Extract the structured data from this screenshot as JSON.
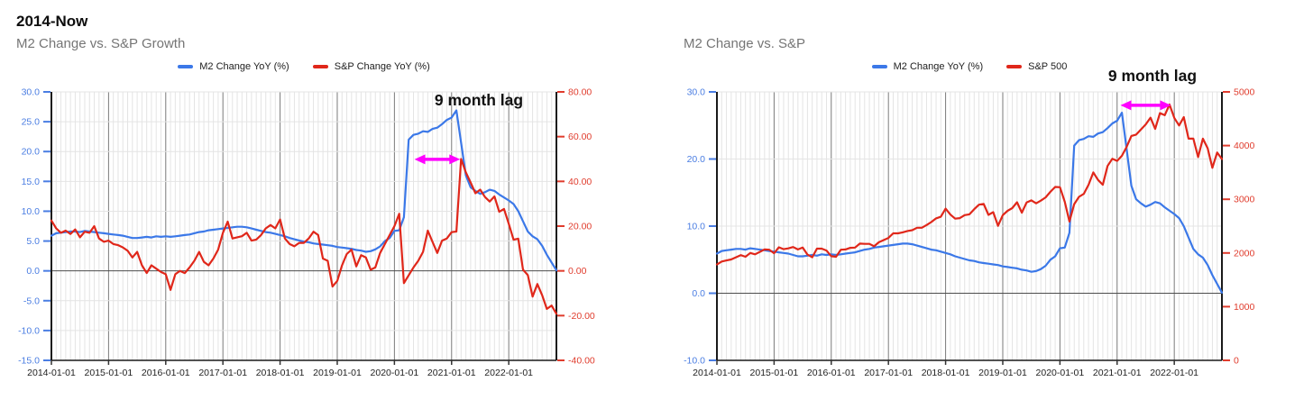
{
  "page": {
    "background": "#ffffff",
    "heading": "2014-Now"
  },
  "colors": {
    "m2_blue": "#3b78e8",
    "sp_red": "#e0271a",
    "blue_axis_label": "#4a7de2",
    "red_axis_label": "#e03c2d",
    "arrow_magenta": "#ff00ff",
    "title_gray": "#757575"
  },
  "chart_data": [
    {
      "type": "line",
      "title": "M2 Change vs. S&P Growth",
      "x_unit": "month",
      "x_start": "2014-01",
      "x_tick_labels": [
        "2014-01-01",
        "2015-01-01",
        "2016-01-01",
        "2017-01-01",
        "2018-01-01",
        "2019-01-01",
        "2020-01-01",
        "2021-01-01",
        "2022-01-01"
      ],
      "left_axis": {
        "min": -15,
        "max": 30,
        "tick_labels": [
          "30.0",
          "25.0",
          "20.0",
          "15.0",
          "10.0",
          "5.0",
          "0.0",
          "-5.0",
          "-10.0",
          "-15.0"
        ],
        "color": "#4a7de2"
      },
      "right_axis": {
        "min": -40,
        "max": 80,
        "tick_labels": [
          "80.00",
          "60.00",
          "40.00",
          "20.00",
          "0.00",
          "-20.00",
          "-40.00"
        ],
        "color": "#e03c2d"
      },
      "grid": {
        "minor_vertical": "monthly",
        "major_vertical": "yearly",
        "horizontal": "left-ticks"
      },
      "series": [
        {
          "name": "M2 Change YoY (%)",
          "color": "#3b78e8",
          "axis": "left",
          "values": [
            5.9,
            6.3,
            6.4,
            6.5,
            6.6,
            6.6,
            6.5,
            6.7,
            6.6,
            6.5,
            6.4,
            6.3,
            6.2,
            6.1,
            6.0,
            5.9,
            5.7,
            5.5,
            5.5,
            5.6,
            5.7,
            5.6,
            5.8,
            5.7,
            5.8,
            5.7,
            5.8,
            5.9,
            6.0,
            6.1,
            6.3,
            6.5,
            6.6,
            6.8,
            6.9,
            7.0,
            7.1,
            7.2,
            7.3,
            7.4,
            7.4,
            7.3,
            7.1,
            6.9,
            6.7,
            6.5,
            6.4,
            6.2,
            6.0,
            5.8,
            5.5,
            5.3,
            5.1,
            4.9,
            4.8,
            4.6,
            4.5,
            4.4,
            4.3,
            4.2,
            4.0,
            3.9,
            3.8,
            3.7,
            3.5,
            3.4,
            3.2,
            3.3,
            3.6,
            4.1,
            5.0,
            5.5,
            6.7,
            6.8,
            9.0,
            22.0,
            22.8,
            23.0,
            23.4,
            23.3,
            23.8,
            24.0,
            24.6,
            25.3,
            25.7,
            26.9,
            21.5,
            16.0,
            14.0,
            13.4,
            12.9,
            13.2,
            13.6,
            13.4,
            12.8,
            12.3,
            11.8,
            11.2,
            10.0,
            8.3,
            6.6,
            5.8,
            5.3,
            4.2,
            2.7,
            1.4,
            0.1
          ]
        },
        {
          "name": "S&P Change YoY (%)",
          "color": "#e0271a",
          "axis": "right",
          "values": [
            22.5,
            19.0,
            17.0,
            18.0,
            16.5,
            18.5,
            15.0,
            17.5,
            17.0,
            20.0,
            14.5,
            13.0,
            13.5,
            12.0,
            11.5,
            10.5,
            9.0,
            6.0,
            8.5,
            2.5,
            -1.0,
            2.5,
            1.0,
            -0.5,
            -1.5,
            -8.5,
            -1.5,
            0.0,
            -1.0,
            1.5,
            4.5,
            8.5,
            4.0,
            2.5,
            5.5,
            9.5,
            17.0,
            22.0,
            14.5,
            15.0,
            15.5,
            17.0,
            13.5,
            14.0,
            16.0,
            19.0,
            20.5,
            19.0,
            23.0,
            14.5,
            12.0,
            11.0,
            12.5,
            12.5,
            14.5,
            17.5,
            16.0,
            5.5,
            4.5,
            -7.0,
            -4.5,
            2.5,
            7.5,
            9.5,
            2.0,
            7.0,
            6.0,
            0.5,
            1.5,
            8.0,
            12.0,
            16.0,
            20.0,
            25.5,
            -5.5,
            -2.0,
            1.5,
            4.5,
            8.5,
            18.0,
            13.0,
            8.0,
            13.5,
            14.5,
            17.3,
            17.6,
            50.0,
            44.0,
            39.5,
            34.7,
            36.3,
            33.0,
            31.0,
            33.3,
            26.4,
            27.7,
            21.0,
            13.9,
            14.4,
            0.5,
            -1.9,
            -11.5,
            -5.9,
            -10.9,
            -17.0,
            -15.5,
            -19.2
          ]
        }
      ],
      "annotation": {
        "label": "9 month lag",
        "arrow": {
          "from_month": 76.2,
          "to_month": 85.8,
          "at_left_axis_value": 18.7,
          "color": "#ff00ff"
        }
      }
    },
    {
      "type": "line",
      "title": "M2 Change vs. S&P",
      "x_unit": "month",
      "x_start": "2014-01",
      "x_tick_labels": [
        "2014-01-01",
        "2015-01-01",
        "2016-01-01",
        "2017-01-01",
        "2018-01-01",
        "2019-01-01",
        "2020-01-01",
        "2021-01-01",
        "2022-01-01"
      ],
      "left_axis": {
        "min": -10,
        "max": 30,
        "tick_labels": [
          "30.0",
          "20.0",
          "10.0",
          "0.0",
          "-10.0"
        ],
        "color": "#4a7de2"
      },
      "right_axis": {
        "min": 0,
        "max": 5000,
        "tick_labels": [
          "5000",
          "4000",
          "3000",
          "2000",
          "1000",
          "0"
        ],
        "color": "#e03c2d"
      },
      "grid": {
        "minor_vertical": "monthly",
        "major_vertical": "yearly",
        "horizontal": "left-ticks"
      },
      "series": [
        {
          "name": "M2 Change YoY (%)",
          "color": "#3b78e8",
          "axis": "left",
          "values": [
            5.9,
            6.3,
            6.4,
            6.5,
            6.6,
            6.6,
            6.5,
            6.7,
            6.6,
            6.5,
            6.4,
            6.3,
            6.2,
            6.1,
            6.0,
            5.9,
            5.7,
            5.5,
            5.5,
            5.6,
            5.7,
            5.6,
            5.8,
            5.7,
            5.8,
            5.7,
            5.8,
            5.9,
            6.0,
            6.1,
            6.3,
            6.5,
            6.6,
            6.8,
            6.9,
            7.0,
            7.1,
            7.2,
            7.3,
            7.4,
            7.4,
            7.3,
            7.1,
            6.9,
            6.7,
            6.5,
            6.4,
            6.2,
            6.0,
            5.8,
            5.5,
            5.3,
            5.1,
            4.9,
            4.8,
            4.6,
            4.5,
            4.4,
            4.3,
            4.2,
            4.0,
            3.9,
            3.8,
            3.7,
            3.5,
            3.4,
            3.2,
            3.3,
            3.6,
            4.1,
            5.0,
            5.5,
            6.7,
            6.8,
            9.0,
            22.0,
            22.8,
            23.0,
            23.4,
            23.3,
            23.8,
            24.0,
            24.6,
            25.3,
            25.7,
            26.9,
            21.5,
            16.0,
            14.0,
            13.4,
            12.9,
            13.2,
            13.6,
            13.4,
            12.8,
            12.3,
            11.8,
            11.2,
            10.0,
            8.3,
            6.6,
            5.8,
            5.3,
            4.2,
            2.7,
            1.4,
            0.1
          ]
        },
        {
          "name": "S&P 500",
          "color": "#e0271a",
          "axis": "right",
          "values": [
            1785,
            1840,
            1860,
            1880,
            1920,
            1960,
            1930,
            2000,
            1975,
            2020,
            2065,
            2060,
            1995,
            2105,
            2070,
            2085,
            2110,
            2065,
            2100,
            1970,
            1920,
            2080,
            2080,
            2045,
            1940,
            1930,
            2060,
            2065,
            2095,
            2100,
            2175,
            2170,
            2170,
            2125,
            2200,
            2240,
            2280,
            2365,
            2365,
            2385,
            2410,
            2425,
            2470,
            2470,
            2520,
            2575,
            2645,
            2675,
            2825,
            2715,
            2640,
            2650,
            2705,
            2720,
            2815,
            2900,
            2915,
            2710,
            2760,
            2505,
            2705,
            2785,
            2835,
            2945,
            2750,
            2940,
            2980,
            2925,
            2975,
            3035,
            3140,
            3230,
            3225,
            2955,
            2585,
            2910,
            3045,
            3100,
            3270,
            3500,
            3360,
            3270,
            3620,
            3755,
            3715,
            3810,
            3975,
            4180,
            4205,
            4300,
            4395,
            4520,
            4310,
            4605,
            4565,
            4765,
            4515,
            4375,
            4530,
            4130,
            4130,
            3785,
            4130,
            3950,
            3585,
            3870,
            3750
          ]
        }
      ],
      "annotation": {
        "label": "9 month lag",
        "arrow": {
          "from_month": 84.7,
          "to_month": 95.3,
          "at_left_axis_value": 28,
          "color": "#ff00ff"
        }
      }
    }
  ]
}
